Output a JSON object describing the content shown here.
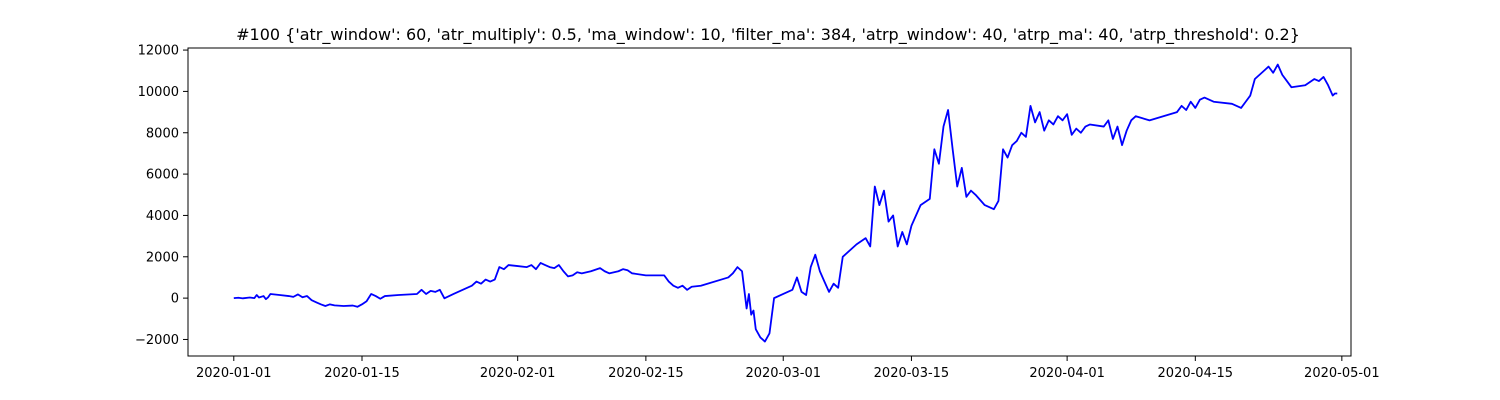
{
  "chart_data": {
    "type": "line",
    "title": "#100 {'atr_window': 60, 'atr_multiply': 0.5, 'ma_window': 10, 'filter_ma': 384, 'atrp_window': 40, 'atrp_ma': 40, 'atrp_threshold': 0.2}",
    "xlabel": "",
    "ylabel": "",
    "xlim": [
      "2019-12-27",
      "2020-05-02"
    ],
    "ylim": [
      -2800,
      12100
    ],
    "x_ticks": [
      "2020-01-01",
      "2020-01-15",
      "2020-02-01",
      "2020-02-15",
      "2020-03-01",
      "2020-03-15",
      "2020-04-01",
      "2020-04-15",
      "2020-05-01"
    ],
    "y_ticks": [
      "−2000",
      "0",
      "2000",
      "4000",
      "6000",
      "8000",
      "10000",
      "12000"
    ],
    "y_tick_values": [
      -2000,
      0,
      2000,
      4000,
      6000,
      8000,
      10000,
      12000
    ],
    "grid": false,
    "legend": "none",
    "series": [
      {
        "color": "#0000ff",
        "points": [
          [
            "2020-01-01T00:00",
            0
          ],
          [
            "2020-01-01T12:00",
            20
          ],
          [
            "2020-01-02T00:00",
            -10
          ],
          [
            "2020-01-02T18:00",
            30
          ],
          [
            "2020-01-03T06:00",
            0
          ],
          [
            "2020-01-03T12:00",
            150
          ],
          [
            "2020-01-03T18:00",
            30
          ],
          [
            "2020-01-04T06:00",
            100
          ],
          [
            "2020-01-04T12:00",
            -50
          ],
          [
            "2020-01-04T18:00",
            40
          ],
          [
            "2020-01-05T00:00",
            200
          ],
          [
            "2020-01-06T00:00",
            150
          ],
          [
            "2020-01-07T00:00",
            100
          ],
          [
            "2020-01-07T12:00",
            60
          ],
          [
            "2020-01-08T00:00",
            180
          ],
          [
            "2020-01-08T12:00",
            40
          ],
          [
            "2020-01-09T00:00",
            100
          ],
          [
            "2020-01-09T12:00",
            -100
          ],
          [
            "2020-01-10T00:00",
            -200
          ],
          [
            "2020-01-10T12:00",
            -300
          ],
          [
            "2020-01-11T00:00",
            -380
          ],
          [
            "2020-01-11T12:00",
            -300
          ],
          [
            "2020-01-12T00:00",
            -350
          ],
          [
            "2020-01-13T00:00",
            -380
          ],
          [
            "2020-01-14T00:00",
            -360
          ],
          [
            "2020-01-14T12:00",
            -420
          ],
          [
            "2020-01-15T00:00",
            -300
          ],
          [
            "2020-01-15T12:00",
            -150
          ],
          [
            "2020-01-16T00:00",
            200
          ],
          [
            "2020-01-16T12:00",
            100
          ],
          [
            "2020-01-17T00:00",
            -30
          ],
          [
            "2020-01-17T12:00",
            100
          ],
          [
            "2020-01-19T00:00",
            150
          ],
          [
            "2020-01-21T00:00",
            200
          ],
          [
            "2020-01-21T12:00",
            400
          ],
          [
            "2020-01-22T00:00",
            200
          ],
          [
            "2020-01-22T12:00",
            350
          ],
          [
            "2020-01-23T00:00",
            300
          ],
          [
            "2020-01-23T12:00",
            400
          ],
          [
            "2020-01-24T00:00",
            -10
          ],
          [
            "2020-01-25T00:00",
            200
          ],
          [
            "2020-01-26T00:00",
            400
          ],
          [
            "2020-01-27T00:00",
            600
          ],
          [
            "2020-01-27T12:00",
            800
          ],
          [
            "2020-01-28T00:00",
            700
          ],
          [
            "2020-01-28T12:00",
            900
          ],
          [
            "2020-01-29T00:00",
            800
          ],
          [
            "2020-01-29T12:00",
            900
          ],
          [
            "2020-01-30T00:00",
            1500
          ],
          [
            "2020-01-30T12:00",
            1400
          ],
          [
            "2020-01-31T00:00",
            1600
          ],
          [
            "2020-02-01T00:00",
            1550
          ],
          [
            "2020-02-02T00:00",
            1500
          ],
          [
            "2020-02-02T12:00",
            1600
          ],
          [
            "2020-02-03T00:00",
            1400
          ],
          [
            "2020-02-03T12:00",
            1700
          ],
          [
            "2020-02-04T00:00",
            1600
          ],
          [
            "2020-02-04T12:00",
            1500
          ],
          [
            "2020-02-05T00:00",
            1450
          ],
          [
            "2020-02-05T12:00",
            1600
          ],
          [
            "2020-02-06T00:00",
            1300
          ],
          [
            "2020-02-06T12:00",
            1050
          ],
          [
            "2020-02-07T00:00",
            1100
          ],
          [
            "2020-02-07T12:00",
            1250
          ],
          [
            "2020-02-08T00:00",
            1200
          ],
          [
            "2020-02-09T00:00",
            1300
          ],
          [
            "2020-02-10T00:00",
            1450
          ],
          [
            "2020-02-10T12:00",
            1300
          ],
          [
            "2020-02-11T00:00",
            1200
          ],
          [
            "2020-02-12T00:00",
            1300
          ],
          [
            "2020-02-12T12:00",
            1400
          ],
          [
            "2020-02-13T00:00",
            1350
          ],
          [
            "2020-02-13T12:00",
            1200
          ],
          [
            "2020-02-15T00:00",
            1100
          ],
          [
            "2020-02-17T00:00",
            1100
          ],
          [
            "2020-02-17T12:00",
            800
          ],
          [
            "2020-02-18T00:00",
            600
          ],
          [
            "2020-02-18T12:00",
            500
          ],
          [
            "2020-02-19T00:00",
            600
          ],
          [
            "2020-02-19T12:00",
            400
          ],
          [
            "2020-02-20T00:00",
            550
          ],
          [
            "2020-02-21T00:00",
            600
          ],
          [
            "2020-02-24T00:00",
            1000
          ],
          [
            "2020-02-24T12:00",
            1200
          ],
          [
            "2020-02-25T00:00",
            1500
          ],
          [
            "2020-02-25T12:00",
            1300
          ],
          [
            "2020-02-25T18:00",
            400
          ],
          [
            "2020-02-26T00:00",
            -500
          ],
          [
            "2020-02-26T06:00",
            200
          ],
          [
            "2020-02-26T12:00",
            -800
          ],
          [
            "2020-02-26T18:00",
            -600
          ],
          [
            "2020-02-27T00:00",
            -1500
          ],
          [
            "2020-02-27T12:00",
            -1900
          ],
          [
            "2020-02-28T00:00",
            -2100
          ],
          [
            "2020-02-28T12:00",
            -1700
          ],
          [
            "2020-02-29T00:00",
            0
          ],
          [
            "2020-03-01T00:00",
            200
          ],
          [
            "2020-03-02T00:00",
            400
          ],
          [
            "2020-03-02T12:00",
            1000
          ],
          [
            "2020-03-03T00:00",
            300
          ],
          [
            "2020-03-03T12:00",
            150
          ],
          [
            "2020-03-04T00:00",
            1500
          ],
          [
            "2020-03-04T12:00",
            2100
          ],
          [
            "2020-03-05T00:00",
            1300
          ],
          [
            "2020-03-05T12:00",
            800
          ],
          [
            "2020-03-06T00:00",
            300
          ],
          [
            "2020-03-06T12:00",
            700
          ],
          [
            "2020-03-07T00:00",
            500
          ],
          [
            "2020-03-07T12:00",
            2000
          ],
          [
            "2020-03-09T00:00",
            2600
          ],
          [
            "2020-03-10T00:00",
            2900
          ],
          [
            "2020-03-10T12:00",
            2500
          ],
          [
            "2020-03-11T00:00",
            5400
          ],
          [
            "2020-03-11T12:00",
            4500
          ],
          [
            "2020-03-12T00:00",
            5200
          ],
          [
            "2020-03-12T12:00",
            3700
          ],
          [
            "2020-03-13T00:00",
            4000
          ],
          [
            "2020-03-13T12:00",
            2500
          ],
          [
            "2020-03-14T00:00",
            3200
          ],
          [
            "2020-03-14T12:00",
            2600
          ],
          [
            "2020-03-15T00:00",
            3500
          ],
          [
            "2020-03-16T00:00",
            4500
          ],
          [
            "2020-03-17T00:00",
            4800
          ],
          [
            "2020-03-17T12:00",
            7200
          ],
          [
            "2020-03-18T00:00",
            6500
          ],
          [
            "2020-03-18T12:00",
            8300
          ],
          [
            "2020-03-19T00:00",
            9100
          ],
          [
            "2020-03-19T12:00",
            7200
          ],
          [
            "2020-03-20T00:00",
            5400
          ],
          [
            "2020-03-20T12:00",
            6300
          ],
          [
            "2020-03-21T00:00",
            4900
          ],
          [
            "2020-03-21T12:00",
            5200
          ],
          [
            "2020-03-22T00:00",
            5000
          ],
          [
            "2020-03-23T00:00",
            4500
          ],
          [
            "2020-03-24T00:00",
            4300
          ],
          [
            "2020-03-24T12:00",
            4700
          ],
          [
            "2020-03-25T00:00",
            7200
          ],
          [
            "2020-03-25T12:00",
            6800
          ],
          [
            "2020-03-26T00:00",
            7400
          ],
          [
            "2020-03-26T12:00",
            7600
          ],
          [
            "2020-03-27T00:00",
            8000
          ],
          [
            "2020-03-27T12:00",
            7800
          ],
          [
            "2020-03-28T00:00",
            9300
          ],
          [
            "2020-03-28T12:00",
            8500
          ],
          [
            "2020-03-29T00:00",
            9000
          ],
          [
            "2020-03-29T12:00",
            8100
          ],
          [
            "2020-03-30T00:00",
            8600
          ],
          [
            "2020-03-30T12:00",
            8400
          ],
          [
            "2020-03-31T00:00",
            8800
          ],
          [
            "2020-03-31T12:00",
            8600
          ],
          [
            "2020-04-01T00:00",
            8900
          ],
          [
            "2020-04-01T12:00",
            7900
          ],
          [
            "2020-04-02T00:00",
            8200
          ],
          [
            "2020-04-02T12:00",
            8000
          ],
          [
            "2020-04-03T00:00",
            8300
          ],
          [
            "2020-04-03T12:00",
            8400
          ],
          [
            "2020-04-05T00:00",
            8300
          ],
          [
            "2020-04-05T12:00",
            8600
          ],
          [
            "2020-04-06T00:00",
            7700
          ],
          [
            "2020-04-06T12:00",
            8300
          ],
          [
            "2020-04-07T00:00",
            7400
          ],
          [
            "2020-04-07T12:00",
            8100
          ],
          [
            "2020-04-08T00:00",
            8600
          ],
          [
            "2020-04-08T12:00",
            8800
          ],
          [
            "2020-04-10T00:00",
            8600
          ],
          [
            "2020-04-13T00:00",
            9000
          ],
          [
            "2020-04-13T12:00",
            9300
          ],
          [
            "2020-04-14T00:00",
            9100
          ],
          [
            "2020-04-14T12:00",
            9500
          ],
          [
            "2020-04-15T00:00",
            9200
          ],
          [
            "2020-04-15T12:00",
            9600
          ],
          [
            "2020-04-16T00:00",
            9700
          ],
          [
            "2020-04-17T00:00",
            9500
          ],
          [
            "2020-04-19T00:00",
            9400
          ],
          [
            "2020-04-20T00:00",
            9200
          ],
          [
            "2020-04-20T12:00",
            9500
          ],
          [
            "2020-04-21T00:00",
            9800
          ],
          [
            "2020-04-21T12:00",
            10600
          ],
          [
            "2020-04-22T00:00",
            10800
          ],
          [
            "2020-04-22T12:00",
            11000
          ],
          [
            "2020-04-23T00:00",
            11200
          ],
          [
            "2020-04-23T12:00",
            10900
          ],
          [
            "2020-04-24T00:00",
            11300
          ],
          [
            "2020-04-24T12:00",
            10800
          ],
          [
            "2020-04-25T00:00",
            10500
          ],
          [
            "2020-04-25T12:00",
            10200
          ],
          [
            "2020-04-27T00:00",
            10300
          ],
          [
            "2020-04-28T00:00",
            10600
          ],
          [
            "2020-04-28T12:00",
            10500
          ],
          [
            "2020-04-29T00:00",
            10700
          ],
          [
            "2020-04-29T12:00",
            10300
          ],
          [
            "2020-04-30T00:00",
            9800
          ],
          [
            "2020-04-30T06:00",
            9900
          ],
          [
            "2020-04-30T12:00",
            9900
          ]
        ]
      }
    ]
  }
}
